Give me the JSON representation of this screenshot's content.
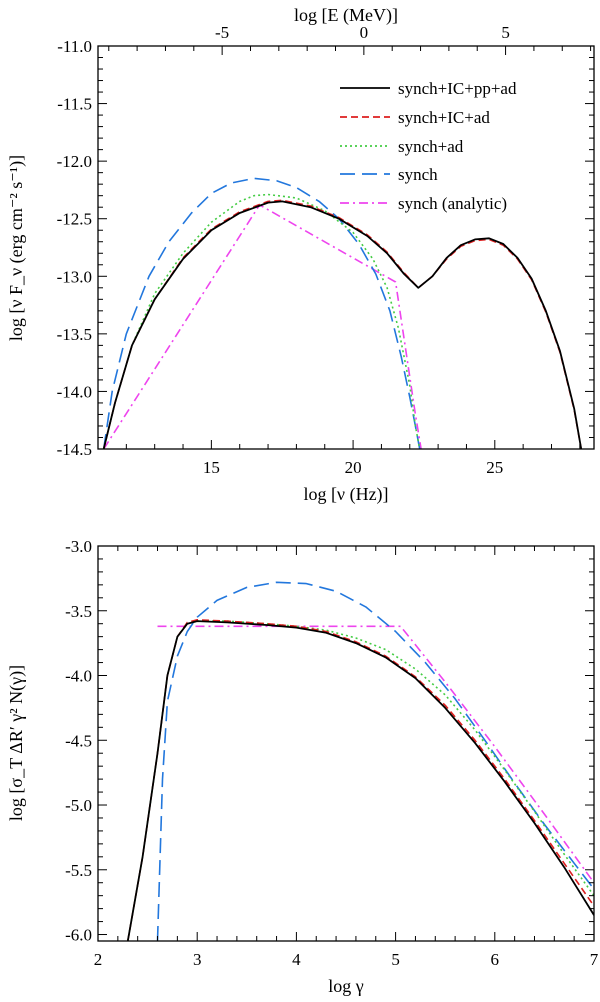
{
  "colors": {
    "synch_IC_pp_ad": "#000000",
    "synch_IC_ad": "#dd1f1f",
    "synch_ad": "#44cc44",
    "synch": "#2277dd",
    "synch_analytic": "#ee44ee"
  },
  "chart_data": [
    {
      "type": "line",
      "xlabel": "log [ν (Hz)]",
      "ylabel": "log [ν F_ν (erg cm⁻² s⁻¹)]",
      "top_xlabel": "log [E (MeV)]",
      "xlim": [
        11.0,
        28.5
      ],
      "ylim": [
        -14.5,
        -11.0
      ],
      "top_xlim": [
        -9.38,
        8.12
      ],
      "x_ticks": [
        "15",
        "20",
        "25"
      ],
      "y_ticks": [
        "-11.0",
        "-11.5",
        "-12.0",
        "-12.5",
        "-13.0",
        "-13.5",
        "-14.0",
        "-14.5"
      ],
      "top_ticks": [
        "-5",
        "0",
        "5"
      ],
      "legend_position": "top-right",
      "grid": false,
      "series": [
        {
          "name": "synch+IC+pp+ad",
          "style": "solid",
          "x": [
            11.2,
            11.6,
            12.2,
            13.0,
            14.0,
            15.0,
            16.0,
            17.0,
            17.5,
            18.5,
            19.5,
            20.5,
            21.2,
            21.8,
            22.3,
            22.8,
            23.3,
            23.8,
            24.3,
            24.8,
            25.3,
            25.8,
            26.3,
            26.8,
            27.3,
            27.8,
            28.05
          ],
          "y": [
            -14.5,
            -14.1,
            -13.6,
            -13.2,
            -12.85,
            -12.6,
            -12.45,
            -12.36,
            -12.35,
            -12.4,
            -12.5,
            -12.65,
            -12.8,
            -12.98,
            -13.1,
            -13.0,
            -12.84,
            -12.73,
            -12.68,
            -12.67,
            -12.72,
            -12.84,
            -13.02,
            -13.3,
            -13.65,
            -14.15,
            -14.5
          ]
        },
        {
          "name": "synch+IC+ad",
          "style": "dashed",
          "x": [
            11.2,
            11.6,
            12.2,
            13.0,
            14.0,
            15.0,
            16.0,
            17.0,
            17.5,
            18.5,
            19.5,
            20.5,
            21.2,
            21.8,
            22.3,
            22.8,
            23.3,
            23.8,
            24.3,
            24.8,
            25.3,
            25.8,
            26.3,
            26.8,
            27.3,
            27.8,
            28.05
          ],
          "y": [
            -14.5,
            -14.1,
            -13.6,
            -13.2,
            -12.84,
            -12.59,
            -12.44,
            -12.35,
            -12.34,
            -12.39,
            -12.49,
            -12.64,
            -12.79,
            -12.97,
            -13.1,
            -13.0,
            -12.85,
            -12.74,
            -12.69,
            -12.68,
            -12.73,
            -12.85,
            -13.03,
            -13.31,
            -13.66,
            -14.16,
            -14.5
          ]
        },
        {
          "name": "synch+ad",
          "style": "dotted",
          "x": [
            11.2,
            11.6,
            12.2,
            13.0,
            14.0,
            15.0,
            16.0,
            16.5,
            17.0,
            18.0,
            19.0,
            20.0,
            20.7,
            21.2,
            21.6,
            22.0,
            22.2,
            22.35
          ],
          "y": [
            -14.5,
            -14.1,
            -13.6,
            -13.15,
            -12.8,
            -12.53,
            -12.35,
            -12.3,
            -12.29,
            -12.32,
            -12.43,
            -12.62,
            -12.85,
            -13.1,
            -13.45,
            -13.95,
            -14.3,
            -14.5
          ]
        },
        {
          "name": "synch",
          "style": "long-dashed",
          "x": [
            11.2,
            11.5,
            12.0,
            12.8,
            13.5,
            14.3,
            15.0,
            15.7,
            16.5,
            17.3,
            18.0,
            18.8,
            19.5,
            20.2,
            20.8,
            21.3,
            21.7,
            22.0,
            22.2,
            22.35
          ],
          "y": [
            -14.5,
            -14.0,
            -13.5,
            -13.0,
            -12.7,
            -12.45,
            -12.28,
            -12.19,
            -12.15,
            -12.17,
            -12.23,
            -12.35,
            -12.5,
            -12.72,
            -12.98,
            -13.3,
            -13.7,
            -14.05,
            -14.3,
            -14.5
          ]
        },
        {
          "name": "synch (analytic)",
          "style": "dash-dot",
          "x": [
            11.2,
            16.7,
            21.5,
            22.2,
            22.4
          ],
          "y": [
            -14.5,
            -12.38,
            -13.05,
            -14.2,
            -14.5
          ]
        }
      ]
    },
    {
      "type": "line",
      "xlabel": "log γ",
      "ylabel": "log [σ_T ΔR′ γ² N(γ)]",
      "xlim": [
        2.0,
        7.0
      ],
      "ylim": [
        -6.05,
        -3.0
      ],
      "x_ticks": [
        "2",
        "3",
        "4",
        "5",
        "6",
        "7"
      ],
      "y_ticks": [
        "-3.0",
        "-3.5",
        "-4.0",
        "-4.5",
        "-5.0",
        "-5.5",
        "-6.0"
      ],
      "grid": false,
      "series": [
        {
          "name": "synch+IC+pp+ad",
          "style": "solid",
          "x": [
            2.3,
            2.45,
            2.6,
            2.7,
            2.8,
            2.9,
            3.0,
            3.3,
            3.7,
            4.0,
            4.3,
            4.6,
            4.9,
            5.2,
            5.5,
            5.8,
            6.1,
            6.4,
            6.7,
            7.0
          ],
          "y": [
            -6.05,
            -5.4,
            -4.6,
            -4.0,
            -3.7,
            -3.6,
            -3.58,
            -3.59,
            -3.61,
            -3.63,
            -3.67,
            -3.75,
            -3.86,
            -4.02,
            -4.25,
            -4.52,
            -4.82,
            -5.14,
            -5.48,
            -5.85
          ]
        },
        {
          "name": "synch+IC+ad",
          "style": "dashed",
          "x": [
            2.3,
            2.45,
            2.6,
            2.7,
            2.8,
            2.9,
            3.0,
            3.3,
            3.7,
            4.0,
            4.3,
            4.6,
            4.9,
            5.2,
            5.5,
            5.8,
            6.1,
            6.4,
            6.7,
            7.0
          ],
          "y": [
            -6.05,
            -5.4,
            -4.6,
            -4.0,
            -3.7,
            -3.59,
            -3.57,
            -3.58,
            -3.6,
            -3.62,
            -3.66,
            -3.74,
            -3.85,
            -4.01,
            -4.23,
            -4.5,
            -4.8,
            -5.12,
            -5.45,
            -5.78
          ]
        },
        {
          "name": "synch+ad",
          "style": "dotted",
          "x": [
            2.3,
            2.45,
            2.6,
            2.7,
            2.8,
            2.9,
            3.0,
            3.3,
            3.7,
            4.0,
            4.3,
            4.6,
            4.9,
            5.2,
            5.5,
            5.8,
            6.1,
            6.4,
            6.7,
            7.0
          ],
          "y": [
            -6.05,
            -5.4,
            -4.6,
            -4.0,
            -3.7,
            -3.6,
            -3.58,
            -3.58,
            -3.6,
            -3.62,
            -3.65,
            -3.71,
            -3.8,
            -3.95,
            -4.15,
            -4.42,
            -4.73,
            -5.05,
            -5.38,
            -5.7
          ]
        },
        {
          "name": "synch",
          "style": "long-dashed",
          "x": [
            2.6,
            2.65,
            2.7,
            2.8,
            2.9,
            3.0,
            3.2,
            3.5,
            3.8,
            4.1,
            4.4,
            4.7,
            5.0,
            5.3,
            5.6,
            5.9,
            6.2,
            6.5,
            6.8,
            7.0
          ],
          "y": [
            -6.05,
            -4.8,
            -4.2,
            -3.85,
            -3.66,
            -3.55,
            -3.42,
            -3.32,
            -3.28,
            -3.29,
            -3.35,
            -3.47,
            -3.66,
            -3.9,
            -4.18,
            -4.5,
            -4.83,
            -5.15,
            -5.45,
            -5.65
          ]
        },
        {
          "name": "synch (analytic)",
          "style": "dash-dot",
          "x": [
            2.6,
            5.05,
            5.5,
            6.0,
            6.5,
            7.0
          ],
          "y": [
            -3.62,
            -3.62,
            -4.05,
            -4.55,
            -5.07,
            -5.6
          ]
        }
      ]
    }
  ]
}
